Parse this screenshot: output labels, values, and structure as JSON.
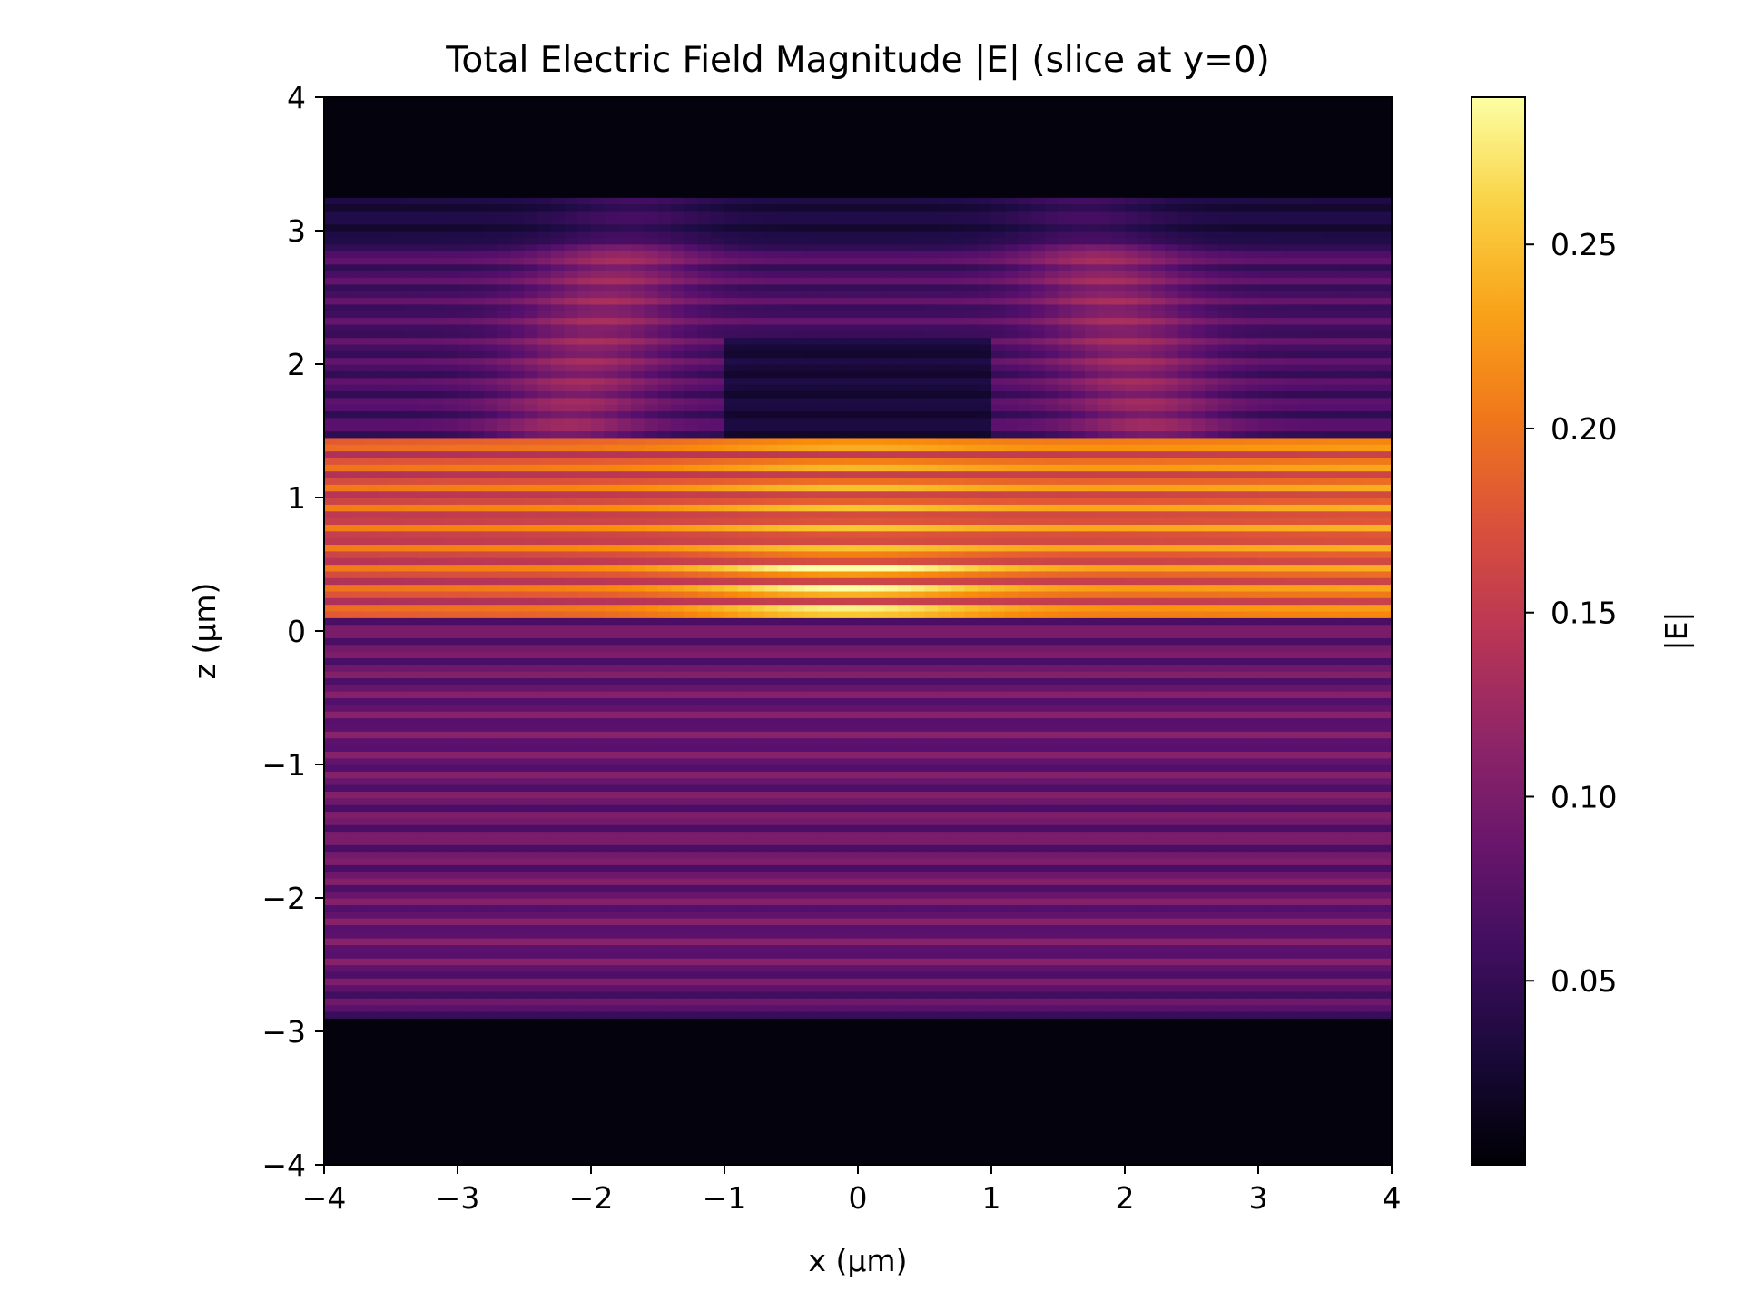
{
  "chart_data": {
    "type": "heatmap",
    "title": "Total Electric Field Magnitude |E| (slice at y=0)",
    "xlabel": "x (µm)",
    "ylabel": "z (µm)",
    "colorbar_label": "|E|",
    "colormap": "inferno",
    "xlim": [
      -4,
      4
    ],
    "ylim": [
      -4,
      4
    ],
    "clim": [
      0.0,
      0.29
    ],
    "x_ticks": [
      -4,
      -3,
      -2,
      -1,
      0,
      1,
      2,
      3,
      4
    ],
    "x_tick_labels": [
      "−4",
      "−3",
      "−2",
      "−1",
      "0",
      "1",
      "2",
      "3",
      "4"
    ],
    "y_ticks": [
      -4,
      -3,
      -2,
      -1,
      0,
      1,
      2,
      3,
      4
    ],
    "y_tick_labels": [
      "−4",
      "−3",
      "−2",
      "−1",
      "0",
      "1",
      "2",
      "3",
      "4"
    ],
    "colorbar_ticks": [
      0.05,
      0.1,
      0.15,
      0.2,
      0.25
    ],
    "colorbar_tick_labels": [
      "0.05",
      "0.10",
      "0.15",
      "0.20",
      "0.25"
    ],
    "field_regions": [
      {
        "z_range": [
          3.25,
          4.0
        ],
        "level": 0.005
      },
      {
        "z_range": [
          1.45,
          3.25
        ],
        "level": 0.08
      },
      {
        "z_range": [
          0.1,
          1.45
        ],
        "level": 0.2
      },
      {
        "z_range": [
          -2.9,
          0.1
        ],
        "level": 0.1
      },
      {
        "z_range": [
          -4.0,
          -2.9
        ],
        "level": 0.005
      }
    ],
    "grid": false
  }
}
